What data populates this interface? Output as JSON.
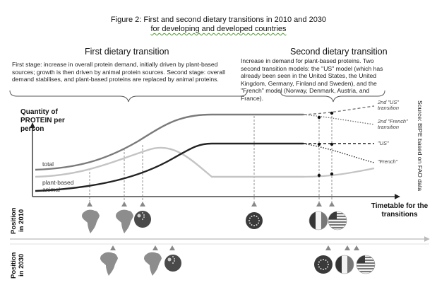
{
  "figure": {
    "title_line1": "Figure 2: First and second dietary transitions in 2010 and 2030",
    "title_line2": "for developing and developed countries"
  },
  "first_transition": {
    "heading": "First dietary transition",
    "description": "First stage: increase in overall protein demand, initially driven by plant-based sources; growth is then driven by animal protein sources. Second stage: overall demand stabilises, and plant-based proteins are replaced by animal proteins."
  },
  "second_transition": {
    "heading": "Second dietary transition",
    "description": "Increase in demand for plant-based proteins. Two second transition models: the \"US\" model (which has already been seen in the United States, the United Kingdom, Germany, Finland and Sweden), and the \"French\" model (Norway, Denmark, Austria, and France)."
  },
  "y_axis": {
    "label": "Quantity of PROTEIN per person"
  },
  "x_axis": {
    "label": "Timetable for the transitions"
  },
  "curves": {
    "total": "total",
    "plant": "plant-based",
    "animal": "animal"
  },
  "transition_labels": {
    "second_us": "2nd \"US\" transition",
    "second_french": "2nd \"French\" transition",
    "us": "\"US\"",
    "french": "\"French\""
  },
  "source": "Source: BIPE based on FAO data",
  "rows": {
    "y2010": "Position in 2010",
    "y2030": "Position in 2030"
  },
  "icons": {
    "y2010": [
      "africa-map-icon",
      "africa-map-icon",
      "china-flag-icon",
      "eu-flag-icon",
      "france-flag-icon",
      "us-flag-icon"
    ],
    "y2030": [
      "africa-map-icon",
      "africa-map-icon",
      "china-flag-icon",
      "eu-flag-icon",
      "france-flag-icon",
      "us-flag-icon"
    ]
  }
}
